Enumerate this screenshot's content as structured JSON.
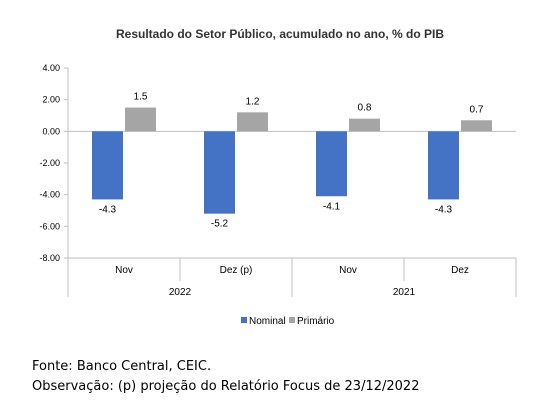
{
  "chart_data": {
    "type": "bar",
    "title": "Resultado do Setor Público, acumulado no ano, % do PIB",
    "groups": [
      {
        "label": "2022",
        "categories": [
          "Nov",
          "Dez (p)"
        ]
      },
      {
        "label": "2021",
        "categories": [
          "Nov",
          "Dez"
        ]
      }
    ],
    "categories": [
      "Nov",
      "Dez (p)",
      "Nov",
      "Dez"
    ],
    "series": [
      {
        "name": "Nominal",
        "color": "#4472C4",
        "values": [
          -4.3,
          -5.2,
          -4.1,
          -4.3
        ],
        "labels": [
          "-4.3",
          "-5.2",
          "-4.1",
          "-4.3"
        ]
      },
      {
        "name": "Primário",
        "color": "#A5A5A5",
        "values": [
          1.5,
          1.2,
          0.8,
          0.7
        ],
        "labels": [
          "1.5",
          "1.2",
          "0.8",
          "0.7"
        ]
      }
    ],
    "ylim": [
      -8,
      4
    ],
    "yticks": [
      4,
      2,
      0,
      -2,
      -4,
      -6,
      -8
    ],
    "ytick_labels": [
      "4.00",
      "2.00",
      "0.00",
      "-2.00",
      "-4.00",
      "-6.00",
      "-8.00"
    ],
    "xlabel": "",
    "ylabel": "",
    "grid": false,
    "legend_position": "bottom"
  },
  "notes": {
    "source": "Fonte: Banco Central, CEIC.",
    "observation": "Observação: (p) projeção do Relatório Focus de 23/12/2022"
  }
}
